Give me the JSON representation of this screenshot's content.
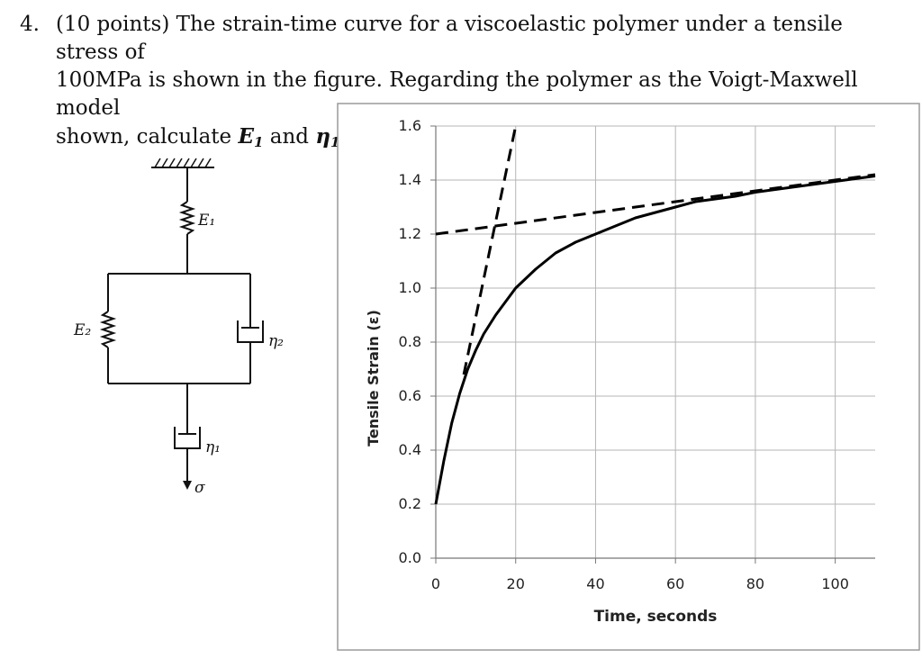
{
  "problem": {
    "number": "4.",
    "text_line1": "(10 points) The strain-time curve for a viscoelastic polymer under a tensile stress of",
    "text_line2": "100MPa is shown in the figure.  Regarding the polymer as the Voigt-Maxwell model",
    "text_line3_prefix": "shown, calculate ",
    "e1_symbol": "E",
    "e1_sub": "1",
    "connector": " and ",
    "eta1_symbol": "η",
    "eta1_sub": "1",
    "end": "."
  },
  "model": {
    "E1": "E₁",
    "E2": "E₂",
    "eta2": "η₂",
    "eta1": "η₁",
    "sigma": "σ"
  },
  "chart_data": {
    "type": "line",
    "xlabel": "Time, seconds",
    "ylabel": "Tensile Strain (ε)",
    "xlim": [
      0,
      110
    ],
    "ylim": [
      0.0,
      1.6
    ],
    "x_ticks": [
      0,
      20,
      40,
      60,
      80,
      100
    ],
    "y_ticks": [
      0.0,
      0.2,
      0.4,
      0.6,
      0.8,
      1.0,
      1.2,
      1.4,
      1.6
    ],
    "y_tick_labels": [
      "0.0",
      "0.2",
      "0.4",
      "0.6",
      "0.8",
      "1.0",
      "1.2",
      "1.4",
      "1.6"
    ],
    "grid": true,
    "series": [
      {
        "style": "solid",
        "x": [
          0,
          2,
          4,
          6,
          8,
          10,
          12,
          15,
          20,
          25,
          30,
          35,
          40,
          45,
          50,
          55,
          60,
          65,
          70,
          75,
          80,
          85,
          90,
          95,
          100,
          105,
          110
        ],
        "y": [
          0.2,
          0.36,
          0.5,
          0.61,
          0.7,
          0.77,
          0.83,
          0.9,
          1.0,
          1.07,
          1.13,
          1.17,
          1.2,
          1.23,
          1.26,
          1.28,
          1.3,
          1.32,
          1.33,
          1.34,
          1.355,
          1.365,
          1.375,
          1.385,
          1.395,
          1.405,
          1.415
        ]
      },
      {
        "style": "dashed",
        "x": [
          0,
          110
        ],
        "y": [
          1.2,
          1.42
        ]
      },
      {
        "style": "dashed",
        "x": [
          7,
          20
        ],
        "y": [
          0.68,
          1.6
        ]
      }
    ]
  }
}
